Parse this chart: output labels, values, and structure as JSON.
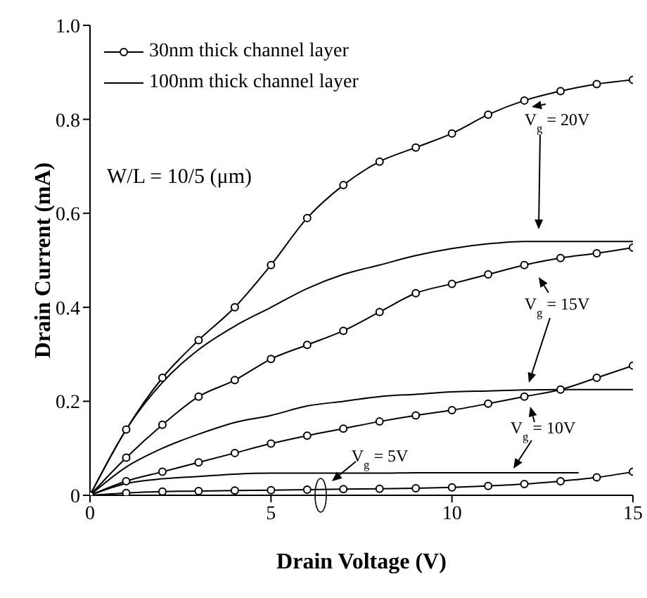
{
  "chart_data": {
    "type": "line",
    "xlabel": "Drain Voltage (V)",
    "ylabel": "Drain Current (mA)",
    "xlim": [
      0,
      15
    ],
    "xticks": [
      0,
      5,
      10,
      15
    ],
    "ylim": [
      0,
      1.0
    ],
    "yticks": [
      0,
      0.2,
      0.4,
      0.6,
      0.8,
      {
        "value": 1.0,
        "label": "1.0"
      }
    ],
    "grid": false,
    "legend": "top left",
    "annotations": [
      "W/L = 10/5 (μm)",
      "V$_{g}$ = 20V",
      "V$_{g}$ = 15V",
      "V$_{g}$ = 10V",
      "V$_{g}$ = 5V"
    ],
    "series": [
      {
        "name": "30nm thick channel layer",
        "color": "#000000",
        "marker": "circle",
        "x": [
          0,
          1,
          2,
          3,
          4,
          5,
          6,
          7,
          8,
          9,
          10,
          11,
          12,
          13,
          14,
          15
        ],
        "values": [
          0,
          0.14,
          0.25,
          0.33,
          0.4,
          0.49,
          0.59,
          0.66,
          0.71,
          0.74,
          0.77,
          0.81,
          0.84,
          0.86,
          0.875,
          0.884
        ]
      },
      {
        "color": "#000000",
        "marker": "circle",
        "x": [
          0,
          1,
          2,
          3,
          4,
          5,
          6,
          7,
          8,
          9,
          10,
          11,
          12,
          13,
          14,
          15
        ],
        "values": [
          0,
          0.08,
          0.15,
          0.21,
          0.245,
          0.29,
          0.32,
          0.35,
          0.39,
          0.43,
          0.45,
          0.47,
          0.49,
          0.505,
          0.515,
          0.527
        ]
      },
      {
        "color": "#000000",
        "marker": "circle",
        "x": [
          0,
          1,
          2,
          3,
          4,
          5,
          6,
          7,
          8,
          9,
          10,
          11,
          12,
          13,
          14,
          15
        ],
        "values": [
          0,
          0.03,
          0.05,
          0.07,
          0.09,
          0.11,
          0.127,
          0.142,
          0.157,
          0.17,
          0.181,
          0.195,
          0.21,
          0.225,
          0.25,
          0.276
        ]
      },
      {
        "color": "#000000",
        "marker": "circle",
        "x": [
          0,
          1,
          2,
          3,
          4,
          5,
          6,
          7,
          8,
          9,
          10,
          11,
          12,
          13,
          14,
          15
        ],
        "values": [
          0,
          0.005,
          0.008,
          0.009,
          0.01,
          0.011,
          0.012,
          0.013,
          0.014,
          0.015,
          0.017,
          0.02,
          0.024,
          0.03,
          0.038,
          0.05
        ]
      },
      {
        "name": "100nm thick channel layer",
        "color": "#000000",
        "marker": "none",
        "x": [
          0,
          1,
          2,
          3,
          4,
          5,
          6,
          7,
          8,
          9,
          10,
          11,
          12,
          13,
          14,
          15
        ],
        "values": [
          0,
          0.14,
          0.24,
          0.31,
          0.36,
          0.4,
          0.44,
          0.47,
          0.49,
          0.51,
          0.525,
          0.535,
          0.54,
          0.54,
          0.54,
          0.54
        ]
      },
      {
        "color": "#000000",
        "marker": "none",
        "x": [
          0,
          1,
          2,
          3,
          4,
          5,
          6,
          7,
          8,
          9,
          10,
          11,
          12,
          13,
          14,
          15
        ],
        "values": [
          0,
          0.06,
          0.1,
          0.13,
          0.155,
          0.17,
          0.19,
          0.2,
          0.21,
          0.215,
          0.22,
          0.222,
          0.224,
          0.225,
          0.225,
          0.225
        ]
      },
      {
        "color": "#000000",
        "marker": "none",
        "x": [
          0,
          1,
          2,
          3,
          4,
          5,
          6,
          7,
          8,
          9,
          10,
          11,
          12,
          13,
          13.5
        ],
        "values": [
          0,
          0.025,
          0.035,
          0.04,
          0.045,
          0.047,
          0.047,
          0.047,
          0.047,
          0.048,
          0.048,
          0.048,
          0.048,
          0.048,
          0.048
        ]
      }
    ]
  }
}
